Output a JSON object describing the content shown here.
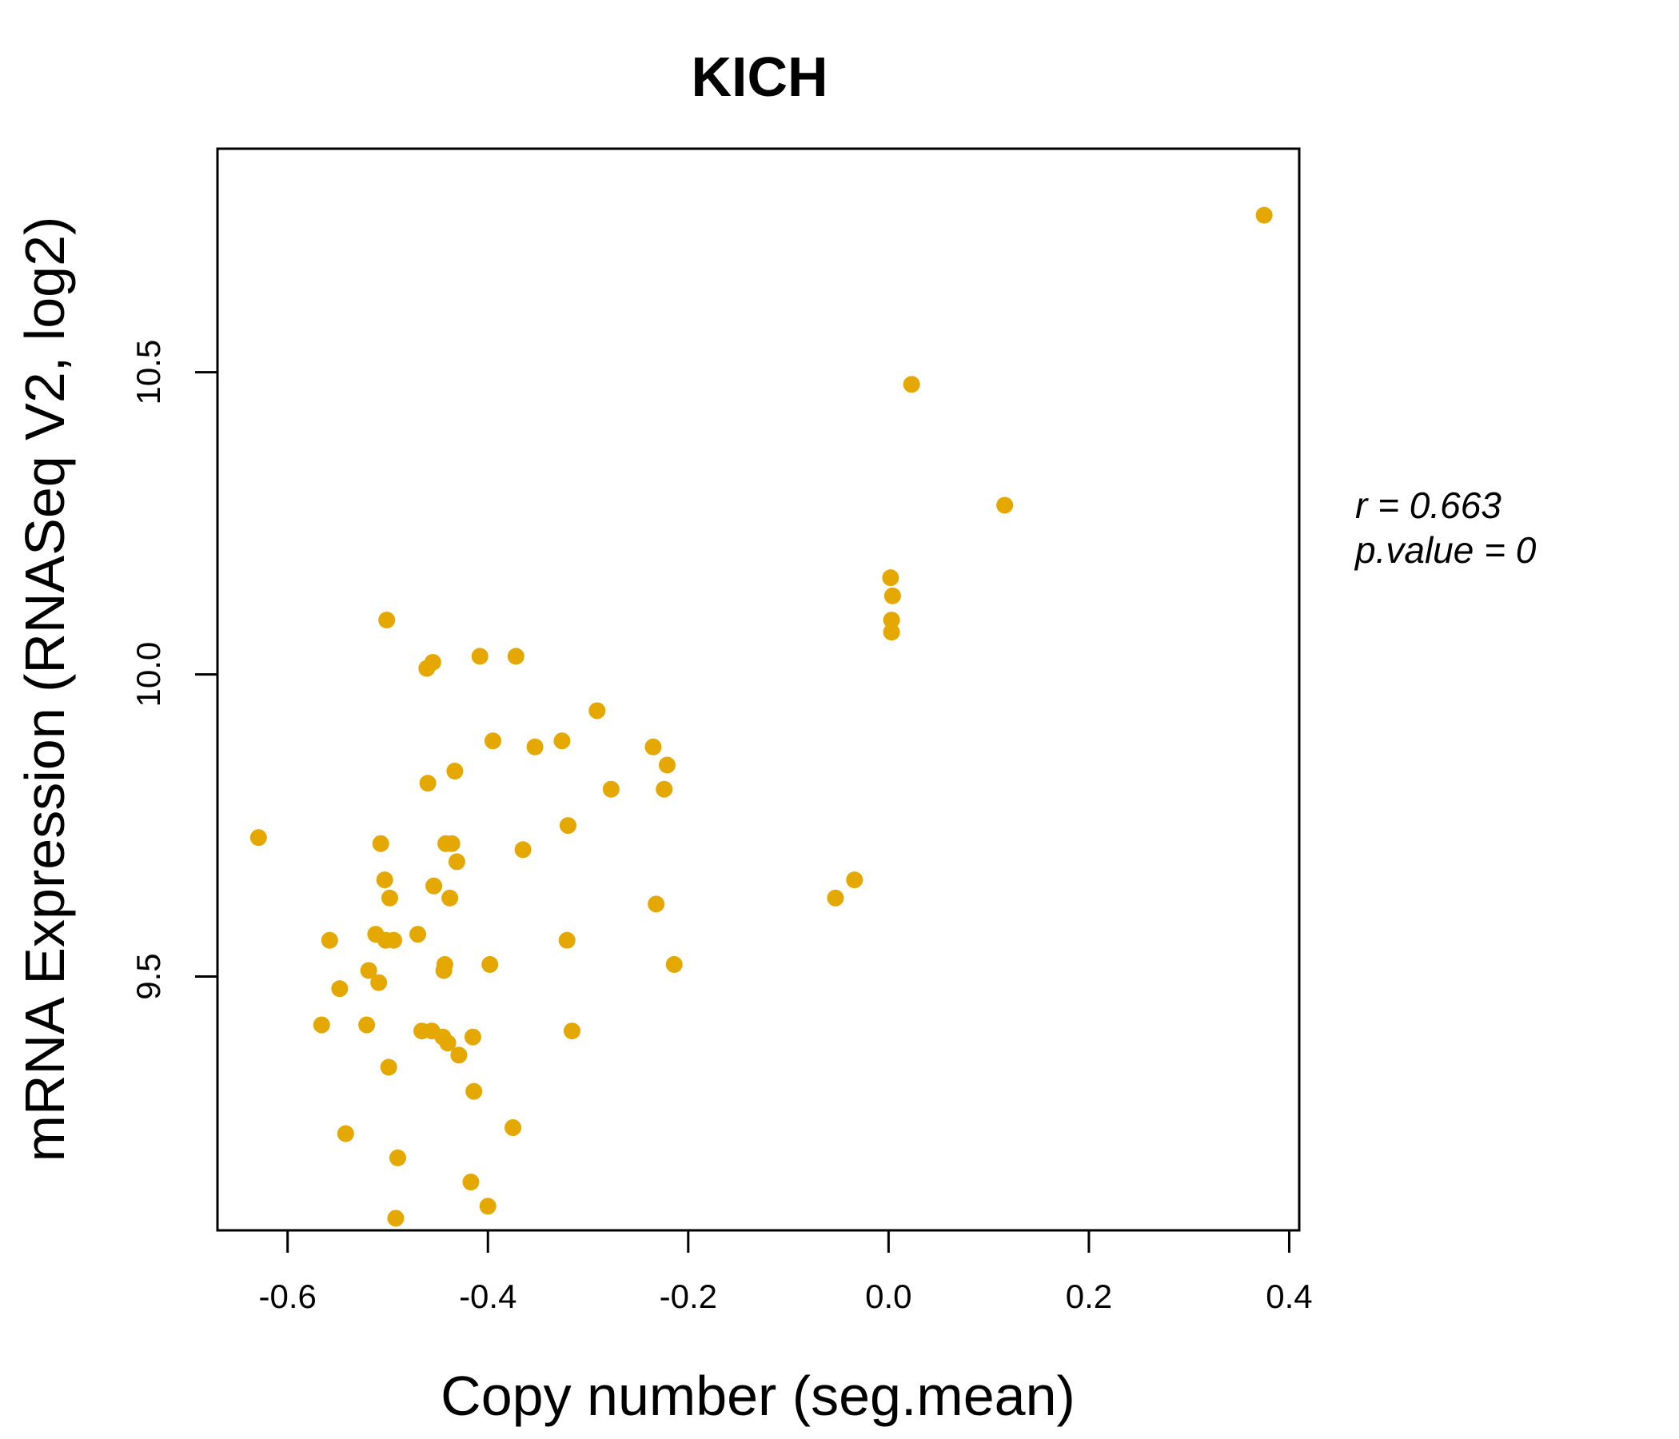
{
  "chart_data": {
    "type": "scatter",
    "title": "KICH",
    "xlabel": "Copy number (seg.mean)",
    "ylabel": "mRNA Expression (RNASeq V2, log2)",
    "xlim": [
      -0.67,
      0.41
    ],
    "ylim": [
      9.08,
      10.87
    ],
    "xticks": [
      -0.6,
      -0.4,
      -0.2,
      0.0,
      0.2,
      0.4
    ],
    "xtick_labels": [
      "-0.6",
      "-0.4",
      "-0.2",
      "0.0",
      "0.2",
      "0.4"
    ],
    "yticks": [
      9.5,
      10.0,
      10.5
    ],
    "ytick_labels": [
      "9.5",
      "10.0",
      "10.5"
    ],
    "point_color": "#E5A800",
    "grid": false,
    "annotations": {
      "r_label": "r = 0.663",
      "p_label": "p.value = 0"
    },
    "series": [
      {
        "points": [
          [
            -0.629,
            9.73
          ],
          [
            -0.566,
            9.42
          ],
          [
            -0.558,
            9.56
          ],
          [
            -0.548,
            9.48
          ],
          [
            -0.542,
            9.24
          ],
          [
            -0.521,
            9.42
          ],
          [
            -0.519,
            9.51
          ],
          [
            -0.512,
            9.57
          ],
          [
            -0.509,
            9.49
          ],
          [
            -0.507,
            9.72
          ],
          [
            -0.503,
            9.66
          ],
          [
            -0.502,
            9.56
          ],
          [
            -0.501,
            10.09
          ],
          [
            -0.499,
            9.35
          ],
          [
            -0.498,
            9.63
          ],
          [
            -0.494,
            9.56
          ],
          [
            -0.492,
            9.1
          ],
          [
            -0.49,
            9.2
          ],
          [
            -0.47,
            9.57
          ],
          [
            -0.466,
            9.41
          ],
          [
            -0.461,
            10.01
          ],
          [
            -0.46,
            9.82
          ],
          [
            -0.456,
            9.41
          ],
          [
            -0.455,
            10.02
          ],
          [
            -0.454,
            9.65
          ],
          [
            -0.445,
            9.4
          ],
          [
            -0.444,
            9.51
          ],
          [
            -0.443,
            9.52
          ],
          [
            -0.442,
            9.72
          ],
          [
            -0.44,
            9.39
          ],
          [
            -0.438,
            9.63
          ],
          [
            -0.436,
            9.72
          ],
          [
            -0.433,
            9.84
          ],
          [
            -0.431,
            9.69
          ],
          [
            -0.429,
            9.37
          ],
          [
            -0.417,
            9.16
          ],
          [
            -0.415,
            9.4
          ],
          [
            -0.414,
            9.31
          ],
          [
            -0.408,
            10.03
          ],
          [
            -0.4,
            9.12
          ],
          [
            -0.398,
            9.52
          ],
          [
            -0.395,
            9.89
          ],
          [
            -0.375,
            9.25
          ],
          [
            -0.372,
            10.03
          ],
          [
            -0.365,
            9.71
          ],
          [
            -0.353,
            9.88
          ],
          [
            -0.326,
            9.89
          ],
          [
            -0.321,
            9.56
          ],
          [
            -0.32,
            9.75
          ],
          [
            -0.316,
            9.41
          ],
          [
            -0.291,
            9.94
          ],
          [
            -0.277,
            9.81
          ],
          [
            -0.235,
            9.88
          ],
          [
            -0.232,
            9.62
          ],
          [
            -0.224,
            9.81
          ],
          [
            -0.221,
            9.85
          ],
          [
            -0.214,
            9.52
          ],
          [
            -0.053,
            9.63
          ],
          [
            -0.034,
            9.66
          ],
          [
            0.002,
            10.16
          ],
          [
            0.003,
            10.09
          ],
          [
            0.003,
            10.07
          ],
          [
            0.004,
            10.13
          ],
          [
            0.023,
            10.48
          ],
          [
            0.116,
            10.28
          ],
          [
            0.375,
            10.76
          ]
        ]
      }
    ]
  }
}
